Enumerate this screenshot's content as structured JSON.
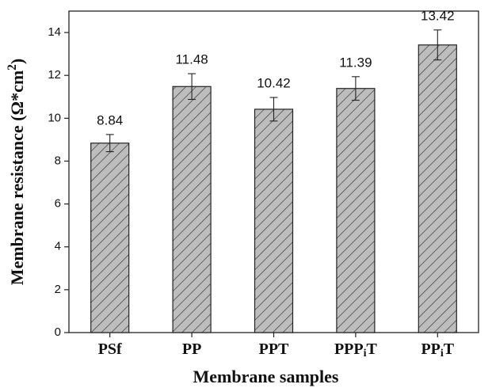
{
  "chart_data": {
    "type": "bar",
    "categories": [
      [
        "PSf"
      ],
      [
        "PP"
      ],
      [
        "PPT"
      ],
      [
        "PPP",
        "i",
        "T"
      ],
      [
        "PP",
        "i",
        "T"
      ]
    ],
    "values": [
      8.84,
      11.48,
      10.42,
      11.39,
      13.42
    ],
    "errors": [
      0.4,
      0.6,
      0.55,
      0.55,
      0.7
    ],
    "color": "#bdbdbd",
    "hatch": "diagonal",
    "xlabel": "Membrane samples",
    "ylabel": [
      "Membrane resistance (Ω*cm",
      "2",
      ")"
    ],
    "ylim": [
      0,
      15
    ],
    "yticks": [
      0,
      2,
      4,
      6,
      8,
      10,
      12,
      14
    ],
    "grid": false
  }
}
